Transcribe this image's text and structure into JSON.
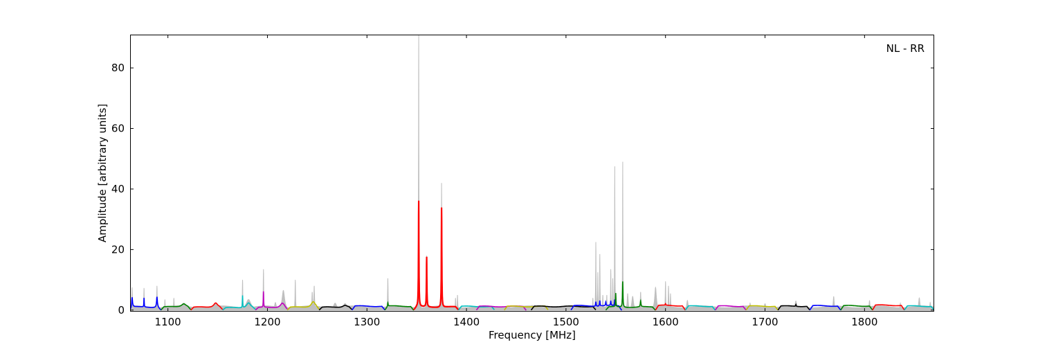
{
  "chart_data": {
    "type": "line",
    "title": "",
    "annotation": "NL - RR",
    "xlabel": "Frequency [MHz]",
    "ylabel": "Amplitude [arbitrary units]",
    "xlim": [
      1062,
      1870
    ],
    "ylim": [
      -0.5,
      91
    ],
    "xticks": [
      1100,
      1200,
      1300,
      1400,
      1500,
      1600,
      1700,
      1800
    ],
    "yticks": [
      0,
      20,
      40,
      60,
      80
    ],
    "grid": false,
    "background_spectrum": {
      "color": "#bfbfbf",
      "baseline": 1.2,
      "peaks": [
        [
          1064,
          7.5,
          0.3
        ],
        [
          1076,
          7.3,
          0.3
        ],
        [
          1089,
          8,
          0.3
        ],
        [
          1097,
          3.5,
          0.3
        ],
        [
          1106,
          4,
          0.3
        ],
        [
          1116,
          2.3,
          3
        ],
        [
          1148,
          2.4,
          3
        ],
        [
          1175,
          10,
          0.3
        ],
        [
          1181,
          3.5,
          3
        ],
        [
          1196,
          13.5,
          0.3
        ],
        [
          1208,
          2.5,
          1
        ],
        [
          1216,
          6.5,
          1.5
        ],
        [
          1228,
          10,
          0.3
        ],
        [
          1245,
          6,
          0.4
        ],
        [
          1247,
          8,
          0.4
        ],
        [
          1268,
          2.3,
          2
        ],
        [
          1278,
          2.2,
          2
        ],
        [
          1293,
          1.6,
          2
        ],
        [
          1321,
          10.5,
          0.3
        ],
        [
          1352,
          91,
          0.25
        ],
        [
          1360,
          18,
          0.25
        ],
        [
          1375,
          42,
          0.25
        ],
        [
          1389,
          4,
          0.3
        ],
        [
          1391,
          5,
          0.3
        ],
        [
          1466,
          1.6,
          1
        ],
        [
          1527,
          4,
          0.3
        ],
        [
          1530,
          22.5,
          0.25
        ],
        [
          1532,
          12.5,
          0.25
        ],
        [
          1534,
          18.5,
          0.25
        ],
        [
          1537,
          5,
          0.3
        ],
        [
          1541,
          5,
          0.3
        ],
        [
          1545,
          13.5,
          0.25
        ],
        [
          1547,
          10.5,
          0.25
        ],
        [
          1549,
          47.5,
          0.2
        ],
        [
          1557,
          49,
          0.2
        ],
        [
          1562,
          5.5,
          0.6
        ],
        [
          1567,
          4.5,
          1
        ],
        [
          1575,
          6,
          0.4
        ],
        [
          1590,
          7.5,
          1
        ],
        [
          1600,
          9.5,
          0.3
        ],
        [
          1603,
          8,
          0.3
        ],
        [
          1605,
          5.5,
          0.3
        ],
        [
          1622,
          3.2,
          0.8
        ],
        [
          1685,
          2.3,
          0.5
        ],
        [
          1700,
          2.1,
          1
        ],
        [
          1731,
          3,
          1
        ],
        [
          1769,
          4.5,
          0.6
        ],
        [
          1805,
          3.2,
          0.5
        ],
        [
          1836,
          2.3,
          0.5
        ],
        [
          1855,
          4,
          0.8
        ],
        [
          1866,
          2.5,
          0.5
        ]
      ]
    },
    "series": [
      {
        "color": "#0000ff",
        "range": [
          1062,
          1093
        ],
        "level": 1.0,
        "peaks": [
          [
            1064,
            3.5,
            0.5
          ],
          [
            1076,
            3,
            0.2
          ],
          [
            1089,
            3.5,
            0.5
          ]
        ]
      },
      {
        "color": "#008000",
        "range": [
          1093,
          1123
        ],
        "level": 1.0,
        "peaks": [
          [
            1116,
            1.2,
            3
          ]
        ]
      },
      {
        "color": "#ff0000",
        "range": [
          1123,
          1155
        ],
        "level": 0.9,
        "peaks": [
          [
            1148,
            1.6,
            2.5
          ]
        ]
      },
      {
        "color": "#00bfbf",
        "range": [
          1155,
          1188
        ],
        "level": 0.7,
        "peaks": [
          [
            1175,
            4,
            0.2
          ],
          [
            1181,
            1.8,
            2.5
          ]
        ]
      },
      {
        "color": "#bf00bf",
        "range": [
          1188,
          1220
        ],
        "level": 0.8,
        "peaks": [
          [
            1196,
            5.2,
            0.2
          ],
          [
            1215,
            1.6,
            2.5
          ]
        ]
      },
      {
        "color": "#bfbf00",
        "range": [
          1220,
          1252
        ],
        "level": 0.9,
        "peaks": [
          [
            1246,
            2,
            2.5
          ]
        ]
      },
      {
        "color": "#000000",
        "range": [
          1252,
          1285
        ],
        "level": 0.9,
        "peaks": [
          [
            1278,
            0.8,
            3
          ]
        ]
      },
      {
        "color": "#0000ff",
        "range": [
          1285,
          1318
        ],
        "level": 1.3,
        "peaks": []
      },
      {
        "color": "#008000",
        "range": [
          1318,
          1347
        ],
        "level": 1.3,
        "peaks": [
          [
            1321,
            1,
            0.3
          ]
        ]
      },
      {
        "color": "#ff0000",
        "range": [
          1347,
          1392
        ],
        "level": 1.0,
        "peaks": [
          [
            1352,
            35,
            0.25
          ],
          [
            1360,
            16.5,
            0.25
          ],
          [
            1375,
            33,
            0.25
          ]
        ]
      },
      {
        "color": "#00bfbf",
        "range": [
          1392,
          1428
        ],
        "level": 1.2,
        "peaks": []
      },
      {
        "color": "#bf00bf",
        "range": [
          1410,
          1460
        ],
        "level": 1.2,
        "peaks": []
      },
      {
        "color": "#bfbf00",
        "range": [
          1438,
          1482
        ],
        "level": 1.2,
        "peaks": []
      },
      {
        "color": "#000000",
        "range": [
          1465,
          1530
        ],
        "level": 1.2,
        "peaks": []
      },
      {
        "color": "#0000ff",
        "range": [
          1505,
          1556
        ],
        "level": 1.4,
        "peaks": [
          [
            1530,
            1.5,
            0.3
          ],
          [
            1534,
            1.8,
            0.3
          ],
          [
            1540,
            1.2,
            0.3
          ],
          [
            1545,
            1.5,
            0.3
          ],
          [
            1549,
            2,
            0.3
          ]
        ]
      },
      {
        "color": "#008000",
        "range": [
          1540,
          1590
        ],
        "level": 1.0,
        "peaks": [
          [
            1550,
            4.5,
            0.25
          ],
          [
            1557,
            8.5,
            0.3
          ],
          [
            1575,
            2,
            0.4
          ]
        ]
      },
      {
        "color": "#ff0000",
        "range": [
          1590,
          1620
        ],
        "level": 1.5,
        "peaks": [
          [
            1600,
            0.5,
            0.3
          ]
        ]
      },
      {
        "color": "#00bfbf",
        "range": [
          1620,
          1650
        ],
        "level": 1.3,
        "peaks": []
      },
      {
        "color": "#bf00bf",
        "range": [
          1650,
          1681
        ],
        "level": 1.3,
        "peaks": []
      },
      {
        "color": "#bfbf00",
        "range": [
          1681,
          1713
        ],
        "level": 1.3,
        "peaks": []
      },
      {
        "color": "#000000",
        "range": [
          1713,
          1745
        ],
        "level": 1.3,
        "peaks": [
          [
            1731,
            0.6,
            0.3
          ]
        ]
      },
      {
        "color": "#0000ff",
        "range": [
          1745,
          1776
        ],
        "level": 1.4,
        "peaks": []
      },
      {
        "color": "#008000",
        "range": [
          1776,
          1808
        ],
        "level": 1.4,
        "peaks": []
      },
      {
        "color": "#ff0000",
        "range": [
          1808,
          1840
        ],
        "level": 1.6,
        "peaks": []
      },
      {
        "color": "#00bfbf",
        "range": [
          1840,
          1870
        ],
        "level": 1.3,
        "peaks": []
      }
    ]
  }
}
